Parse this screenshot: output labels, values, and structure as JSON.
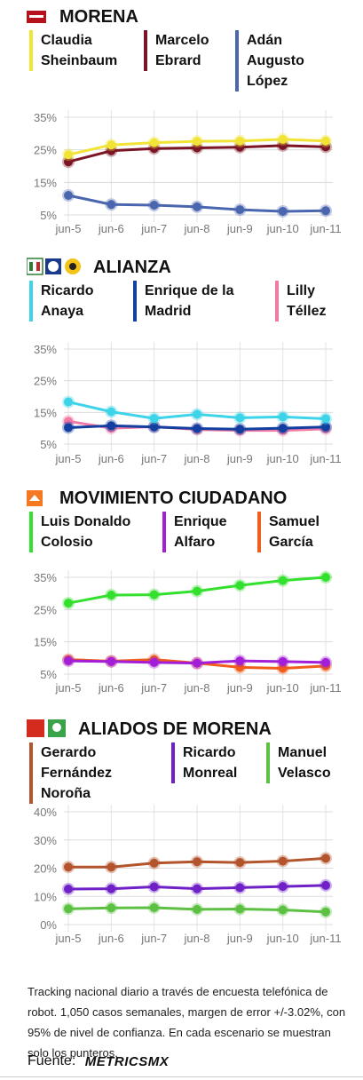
{
  "sources_note": "Tracking nacional diario a través de encuesta telefónica de robot. 1,050 casos semanales, margen de error +/-3.02%, con 95% de nivel de confianza. En cada escenario se muestran solo los punteros.",
  "source": {
    "label": "Fuente:",
    "brand": "MetricsMX",
    "brand_display": "METRICSMX",
    "logo_icon": "metrics-mx-logo"
  },
  "chart_data": [
    {
      "type": "line",
      "title": "MORENA",
      "logo_icon": "morena-logo",
      "categories": [
        "jun-5",
        "jun-6",
        "jun-7",
        "jun-8",
        "jun-9",
        "jun-10",
        "jun-11"
      ],
      "yticks": [
        "35%",
        "25%",
        "15%",
        "5%"
      ],
      "ylim": [
        5,
        35
      ],
      "legend_placement": "top",
      "grid": true,
      "series": [
        {
          "name_lines": [
            "Claudia",
            "Sheinbaum"
          ],
          "color": "#f2e436",
          "values": [
            23.5,
            26.5,
            27.2,
            27.6,
            27.7,
            28.2,
            27.7
          ]
        },
        {
          "name_lines": [
            "Marcelo",
            "Ebrard"
          ],
          "color": "#7b1424",
          "values": [
            21.3,
            24.7,
            25.4,
            25.6,
            25.8,
            26.3,
            25.9
          ]
        },
        {
          "name_lines": [
            "Adán",
            "Augusto",
            "López"
          ],
          "color": "#4a66ae",
          "values": [
            11.0,
            8.2,
            8.0,
            7.5,
            6.6,
            6.1,
            6.3
          ]
        }
      ]
    },
    {
      "type": "line",
      "title": "ALIANZA",
      "logo_icon": "alianza-logos",
      "categories": [
        "jun-5",
        "jun-6",
        "jun-7",
        "jun-8",
        "jun-9",
        "jun-10",
        "jun-11"
      ],
      "yticks": [
        "35%",
        "25%",
        "15%",
        "5%"
      ],
      "ylim": [
        5,
        35
      ],
      "legend_placement": "top",
      "grid": true,
      "series": [
        {
          "name_lines": [
            "Ricardo",
            "Anaya"
          ],
          "color": "#3dd3e8",
          "values": [
            18.3,
            15.2,
            13.1,
            14.4,
            13.3,
            13.6,
            13.0
          ]
        },
        {
          "name_lines": [
            "Enrique de la",
            "Madrid"
          ],
          "color": "#123fa0",
          "values": [
            10.2,
            10.8,
            10.4,
            9.9,
            9.7,
            10.0,
            10.4
          ]
        },
        {
          "name_lines": [
            "Lilly",
            "Téllez"
          ],
          "color": "#f07aa5",
          "values": [
            12.2,
            10.0,
            10.5,
            9.6,
            9.3,
            9.3,
            9.8
          ]
        }
      ]
    },
    {
      "type": "line",
      "title": "MOVIMIENTO CIUDADANO",
      "logo_icon": "movimiento-ciudadano-logo",
      "categories": [
        "jun-5",
        "jun-6",
        "jun-7",
        "jun-8",
        "jun-9",
        "jun-10",
        "jun-11"
      ],
      "yticks": [
        "35%",
        "25%",
        "15%",
        "5%"
      ],
      "ylim": [
        5,
        35
      ],
      "legend_placement": "top",
      "grid": true,
      "series": [
        {
          "name_lines": [
            "Luis Donaldo",
            "Colosio"
          ],
          "color": "#33e02e",
          "values": [
            27.0,
            29.5,
            29.6,
            30.7,
            32.5,
            34.0,
            35.0
          ]
        },
        {
          "name_lines": [
            "Enrique",
            "Alfaro"
          ],
          "color": "#a21ed8",
          "values": [
            9.1,
            8.9,
            8.6,
            8.4,
            9.1,
            8.9,
            8.6
          ]
        },
        {
          "name_lines": [
            "Samuel",
            "García"
          ],
          "color": "#f15d1a",
          "values": [
            9.5,
            9.0,
            9.5,
            8.4,
            7.1,
            6.8,
            7.5
          ]
        }
      ]
    },
    {
      "type": "line",
      "title": "ALIADOS DE MORENA",
      "logo_icon": "pt-pvem-logos",
      "categories": [
        "jun-5",
        "jun-6",
        "jun-7",
        "jun-8",
        "jun-9",
        "jun-10",
        "jun-11"
      ],
      "yticks": [
        "40%",
        "30%",
        "20%",
        "10%",
        "0%"
      ],
      "ylim": [
        0,
        40
      ],
      "legend_placement": "top",
      "grid": true,
      "series": [
        {
          "name_lines": [
            "Gerardo",
            "Fernández",
            "Noroña"
          ],
          "color": "#b3542c",
          "values": [
            20.4,
            20.4,
            21.8,
            22.3,
            22.0,
            22.5,
            23.5
          ]
        },
        {
          "name_lines": [
            "Ricardo",
            "Monreal"
          ],
          "color": "#6f20c6",
          "values": [
            12.6,
            12.7,
            13.4,
            12.7,
            13.1,
            13.5,
            13.9
          ]
        },
        {
          "name_lines": [
            "Manuel",
            "Velasco"
          ],
          "color": "#5cc143",
          "values": [
            5.6,
            5.9,
            6.0,
            5.4,
            5.5,
            5.2,
            4.5
          ]
        }
      ]
    }
  ]
}
